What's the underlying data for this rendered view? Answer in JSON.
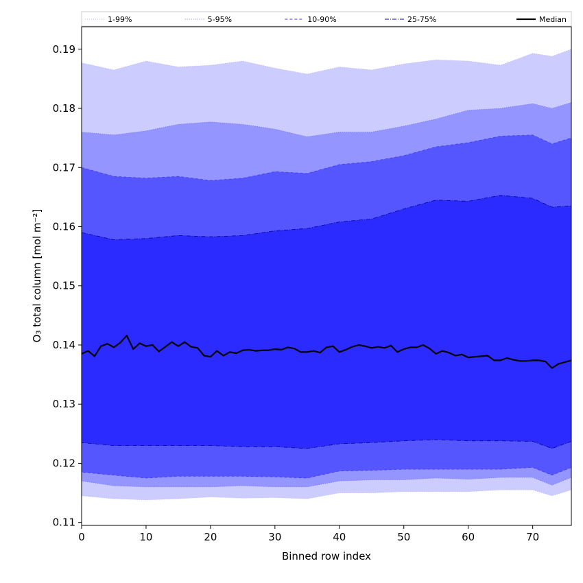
{
  "chart_data": {
    "type": "area",
    "title": "",
    "xlabel": "Binned row index",
    "ylabel": "O₃ total column [mol m⁻²]",
    "xlim": [
      0,
      76
    ],
    "ylim": [
      0.1095,
      0.1938
    ],
    "x_ticks": [
      0,
      10,
      20,
      30,
      40,
      50,
      60,
      70
    ],
    "x_tick_labels": [
      "0",
      "10",
      "20",
      "30",
      "40",
      "50",
      "60",
      "70"
    ],
    "y_ticks": [
      0.11,
      0.12,
      0.13,
      0.14,
      0.15,
      0.16,
      0.17,
      0.18,
      0.19
    ],
    "y_tick_labels": [
      "0.11",
      "0.12",
      "0.13",
      "0.14",
      "0.15",
      "0.16",
      "0.17",
      "0.18",
      "0.19"
    ],
    "grid": false,
    "legend_position": "top (above plot area, single row)",
    "x": [
      0,
      5,
      10,
      15,
      20,
      25,
      30,
      35,
      40,
      45,
      50,
      55,
      60,
      65,
      70,
      73,
      76
    ],
    "bands": [
      {
        "name": "1-99%",
        "color": "#ccccff",
        "line_color": "#b3b3ff",
        "line_style": "dotted",
        "lower": [
          0.1145,
          0.114,
          0.1138,
          0.114,
          0.1143,
          0.1141,
          0.1142,
          0.114,
          0.115,
          0.115,
          0.1152,
          0.1152,
          0.1152,
          0.1155,
          0.1155,
          0.1145,
          0.1155
        ],
        "upper": [
          0.1877,
          0.1865,
          0.188,
          0.187,
          0.1873,
          0.188,
          0.1868,
          0.1858,
          0.187,
          0.1865,
          0.1875,
          0.1882,
          0.188,
          0.1873,
          0.1893,
          0.1888,
          0.19
        ]
      },
      {
        "name": "5-95%",
        "color": "#9595ff",
        "line_color": "#6a6aff",
        "line_style": "dotted",
        "lower": [
          0.117,
          0.1162,
          0.116,
          0.116,
          0.116,
          0.1162,
          0.116,
          0.116,
          0.117,
          0.1172,
          0.1172,
          0.1175,
          0.1173,
          0.1176,
          0.1176,
          0.1163,
          0.1176
        ],
        "upper": [
          0.176,
          0.1755,
          0.1762,
          0.1773,
          0.1777,
          0.1773,
          0.1765,
          0.1752,
          0.176,
          0.176,
          0.177,
          0.1782,
          0.1797,
          0.18,
          0.1808,
          0.18,
          0.181
        ]
      },
      {
        "name": "10-90%",
        "color": "#5656ff",
        "line_color": "#3a3aff",
        "line_style": "dashed",
        "lower": [
          0.1185,
          0.118,
          0.1175,
          0.1178,
          0.1178,
          0.1178,
          0.1177,
          0.1175,
          0.1187,
          0.1188,
          0.119,
          0.119,
          0.119,
          0.119,
          0.1193,
          0.118,
          0.1193
        ],
        "upper": [
          0.17,
          0.1685,
          0.1682,
          0.1685,
          0.1678,
          0.1682,
          0.1693,
          0.169,
          0.1705,
          0.171,
          0.172,
          0.1735,
          0.1742,
          0.1753,
          0.1755,
          0.174,
          0.175
        ]
      },
      {
        "name": "25-75%",
        "color": "#2b2bff",
        "line_color": "#00008a",
        "line_style": "dashdot",
        "lower": [
          0.1235,
          0.123,
          0.123,
          0.123,
          0.123,
          0.1228,
          0.1228,
          0.1225,
          0.1233,
          0.1235,
          0.1238,
          0.124,
          0.1238,
          0.1238,
          0.1237,
          0.1225,
          0.1237
        ],
        "upper": [
          0.159,
          0.1578,
          0.158,
          0.1585,
          0.1583,
          0.1585,
          0.1593,
          0.1597,
          0.1608,
          0.1613,
          0.163,
          0.1645,
          0.1643,
          0.1653,
          0.1648,
          0.1633,
          0.1635
        ]
      }
    ],
    "median": {
      "name": "Median",
      "color": "#000000",
      "x": [
        0,
        1,
        2,
        3,
        4,
        5,
        6,
        7,
        8,
        9,
        10,
        11,
        12,
        13,
        14,
        15,
        16,
        17,
        18,
        19,
        20,
        21,
        22,
        23,
        24,
        25,
        26,
        27,
        28,
        29,
        30,
        31,
        32,
        33,
        34,
        35,
        36,
        37,
        38,
        39,
        40,
        41,
        42,
        43,
        44,
        45,
        46,
        47,
        48,
        49,
        50,
        51,
        52,
        53,
        54,
        55,
        56,
        57,
        58,
        59,
        60,
        61,
        62,
        63,
        64,
        65,
        66,
        67,
        68,
        69,
        70,
        71,
        72,
        73,
        74,
        75,
        76
      ],
      "values": [
        0.1385,
        0.139,
        0.1381,
        0.1398,
        0.1402,
        0.1396,
        0.1404,
        0.1416,
        0.1393,
        0.1403,
        0.1398,
        0.14,
        0.1389,
        0.1397,
        0.1405,
        0.1398,
        0.1405,
        0.1397,
        0.1395,
        0.1382,
        0.138,
        0.139,
        0.1382,
        0.1388,
        0.1386,
        0.1391,
        0.1392,
        0.139,
        0.1391,
        0.1391,
        0.1393,
        0.1392,
        0.1396,
        0.1394,
        0.1388,
        0.1388,
        0.139,
        0.1387,
        0.1396,
        0.1398,
        0.1388,
        0.1392,
        0.1397,
        0.14,
        0.1398,
        0.1395,
        0.1397,
        0.1395,
        0.1399,
        0.1388,
        0.1393,
        0.1396,
        0.1396,
        0.14,
        0.1394,
        0.1385,
        0.139,
        0.1387,
        0.1382,
        0.1384,
        0.1379,
        0.138,
        0.1381,
        0.1382,
        0.1374,
        0.1374,
        0.1378,
        0.1375,
        0.1373,
        0.1373,
        0.1374,
        0.1374,
        0.1372,
        0.1361,
        0.1368,
        0.1371,
        0.1374
      ]
    }
  }
}
